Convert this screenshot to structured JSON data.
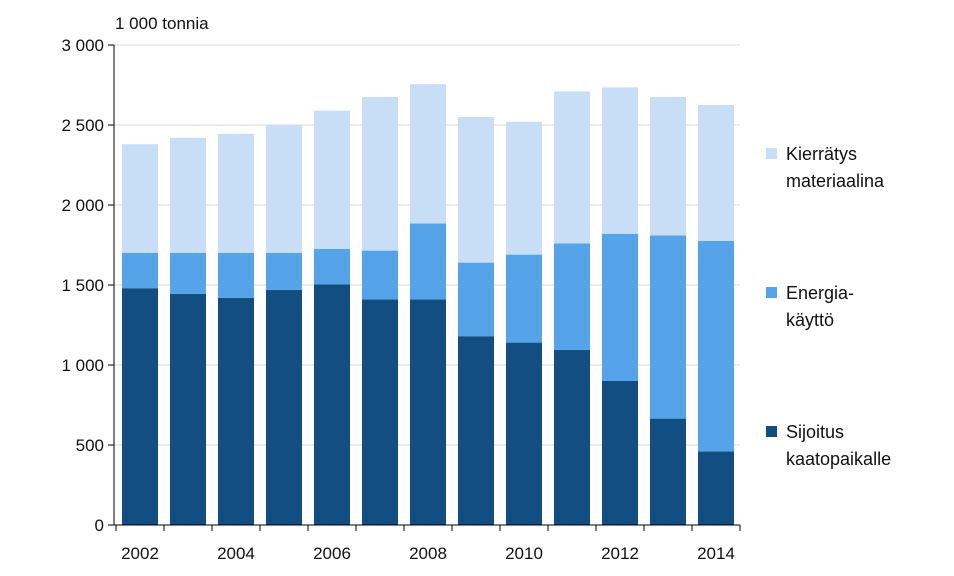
{
  "chart_data": {
    "type": "bar",
    "stacked": true,
    "unit_label": "1 000 tonnia",
    "categories": [
      "2002",
      "2003",
      "2004",
      "2005",
      "2006",
      "2007",
      "2008",
      "2009",
      "2010",
      "2011",
      "2012",
      "2013",
      "2014"
    ],
    "x_tick_labels": [
      "2002",
      "2004",
      "2006",
      "2008",
      "2010",
      "2012",
      "2014"
    ],
    "ylim": [
      0,
      3000
    ],
    "y_ticks": [
      0,
      500,
      1000,
      1500,
      2000,
      2500,
      3000
    ],
    "y_tick_labels": [
      "0",
      "500",
      "1 000",
      "1 500",
      "2 000",
      "2 500",
      "3 000"
    ],
    "grid": true,
    "legend_position": "right",
    "series": [
      {
        "name": "Sijoitus kaatopaikalle",
        "legend_lines": [
          "Sijoitus",
          "kaatopaikalle"
        ],
        "color": "#124e82",
        "values": [
          1480,
          1445,
          1420,
          1470,
          1505,
          1410,
          1410,
          1180,
          1140,
          1095,
          900,
          665,
          460
        ]
      },
      {
        "name": "Energiakäyttö",
        "legend_lines": [
          "Energia-",
          "käyttö"
        ],
        "color": "#55a3e8",
        "values": [
          220,
          255,
          280,
          230,
          220,
          305,
          475,
          460,
          550,
          665,
          920,
          1145,
          1315
        ]
      },
      {
        "name": "Kierrätys materiaalina",
        "legend_lines": [
          "Kierrätys",
          "materiaalina"
        ],
        "color": "#c7def6",
        "values": [
          680,
          720,
          745,
          800,
          865,
          960,
          870,
          910,
          830,
          950,
          915,
          865,
          850
        ]
      }
    ],
    "legend_order": [
      2,
      1,
      0
    ]
  }
}
